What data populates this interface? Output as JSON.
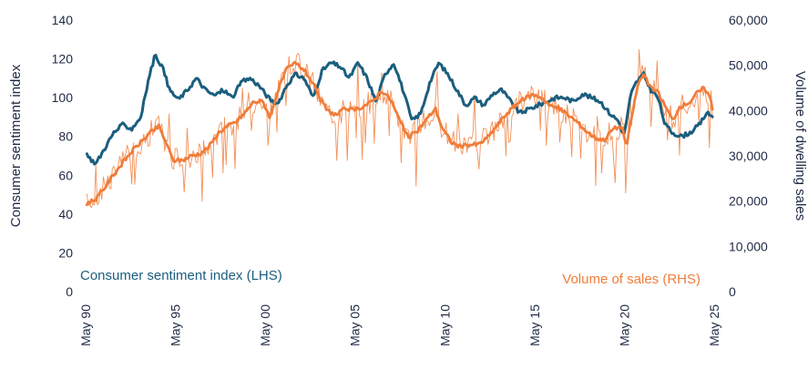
{
  "chart_data": {
    "type": "line",
    "left_axis": {
      "label": "Consumer sentiment index",
      "ticks": [
        "0",
        "20",
        "40",
        "60",
        "80",
        "100",
        "120",
        "140"
      ],
      "range": [
        0,
        140
      ]
    },
    "right_axis": {
      "label": "Volume of dwelling sales",
      "ticks": [
        "0",
        "10,000",
        "20,000",
        "30,000",
        "40,000",
        "50,000",
        "60,000"
      ],
      "range": [
        0,
        60000
      ]
    },
    "x_axis": {
      "ticks": [
        "May 90",
        "May 95",
        "May 00",
        "May 05",
        "May 10",
        "May 15",
        "May 20",
        "May 25"
      ],
      "range": [
        1990.33,
        2025.33
      ]
    },
    "series": [
      {
        "name": "Consumer sentiment index (LHS)",
        "axis": "left",
        "color": "#1b5e7e",
        "points": [
          [
            1990.4,
            70
          ],
          [
            1990.9,
            66
          ],
          [
            1991.4,
            74
          ],
          [
            1991.9,
            82
          ],
          [
            1992.4,
            86
          ],
          [
            1992.9,
            84
          ],
          [
            1993.4,
            90
          ],
          [
            1993.9,
            112
          ],
          [
            1994.2,
            122
          ],
          [
            1994.6,
            116
          ],
          [
            1995.0,
            104
          ],
          [
            1995.5,
            99
          ],
          [
            1996.0,
            104
          ],
          [
            1996.5,
            110
          ],
          [
            1997.0,
            104
          ],
          [
            1997.5,
            101
          ],
          [
            1998.0,
            104
          ],
          [
            1998.5,
            100
          ],
          [
            1999.0,
            108
          ],
          [
            1999.5,
            110
          ],
          [
            2000.0,
            106
          ],
          [
            2000.5,
            100
          ],
          [
            2001.0,
            96
          ],
          [
            2001.5,
            106
          ],
          [
            2002.0,
            112
          ],
          [
            2002.5,
            110
          ],
          [
            2003.0,
            100
          ],
          [
            2003.5,
            114
          ],
          [
            2004.0,
            118
          ],
          [
            2004.5,
            116
          ],
          [
            2005.0,
            110
          ],
          [
            2005.5,
            118
          ],
          [
            2006.0,
            110
          ],
          [
            2006.5,
            98
          ],
          [
            2007.0,
            112
          ],
          [
            2007.5,
            118
          ],
          [
            2008.0,
            104
          ],
          [
            2008.5,
            88
          ],
          [
            2009.0,
            92
          ],
          [
            2009.5,
            108
          ],
          [
            2010.0,
            118
          ],
          [
            2010.5,
            112
          ],
          [
            2011.0,
            104
          ],
          [
            2011.5,
            96
          ],
          [
            2012.0,
            100
          ],
          [
            2012.5,
            96
          ],
          [
            2013.0,
            102
          ],
          [
            2013.5,
            104
          ],
          [
            2014.0,
            98
          ],
          [
            2014.5,
            92
          ],
          [
            2015.0,
            94
          ],
          [
            2015.5,
            96
          ],
          [
            2016.0,
            98
          ],
          [
            2016.5,
            100
          ],
          [
            2017.0,
            100
          ],
          [
            2017.5,
            98
          ],
          [
            2018.0,
            102
          ],
          [
            2018.5,
            100
          ],
          [
            2019.0,
            98
          ],
          [
            2019.5,
            92
          ],
          [
            2020.0,
            88
          ],
          [
            2020.3,
            80
          ],
          [
            2020.7,
            102
          ],
          [
            2021.0,
            108
          ],
          [
            2021.4,
            112
          ],
          [
            2021.8,
            104
          ],
          [
            2022.2,
            100
          ],
          [
            2022.6,
            86
          ],
          [
            2023.0,
            82
          ],
          [
            2023.5,
            80
          ],
          [
            2024.0,
            82
          ],
          [
            2024.5,
            86
          ],
          [
            2024.9,
            92
          ],
          [
            2025.3,
            90
          ]
        ]
      },
      {
        "name": "Volume of sales (RHS)",
        "axis": "right",
        "color": "#f07d3a",
        "points": [
          [
            1990.4,
            19500
          ],
          [
            1990.9,
            20500
          ],
          [
            1991.4,
            23000
          ],
          [
            1991.9,
            26000
          ],
          [
            1992.4,
            28500
          ],
          [
            1992.9,
            31000
          ],
          [
            1993.4,
            33000
          ],
          [
            1993.9,
            35000
          ],
          [
            1994.4,
            36500
          ],
          [
            1994.8,
            33000
          ],
          [
            1995.2,
            29000
          ],
          [
            1995.7,
            29000
          ],
          [
            1996.2,
            30000
          ],
          [
            1996.7,
            30500
          ],
          [
            1997.2,
            32000
          ],
          [
            1997.7,
            35000
          ],
          [
            1998.2,
            36500
          ],
          [
            1998.7,
            37500
          ],
          [
            1999.2,
            39500
          ],
          [
            1999.7,
            42000
          ],
          [
            2000.2,
            42000
          ],
          [
            2000.6,
            38500
          ],
          [
            2001.0,
            44000
          ],
          [
            2001.5,
            49000
          ],
          [
            2002.0,
            50500
          ],
          [
            2002.5,
            49000
          ],
          [
            2003.0,
            46000
          ],
          [
            2003.3,
            43000
          ],
          [
            2003.8,
            40000
          ],
          [
            2004.3,
            39000
          ],
          [
            2004.8,
            40500
          ],
          [
            2005.3,
            40000
          ],
          [
            2005.8,
            41000
          ],
          [
            2006.3,
            42000
          ],
          [
            2006.8,
            44500
          ],
          [
            2007.3,
            42500
          ],
          [
            2007.8,
            38000
          ],
          [
            2008.3,
            34000
          ],
          [
            2008.8,
            35500
          ],
          [
            2009.3,
            38000
          ],
          [
            2009.8,
            40500
          ],
          [
            2010.2,
            36000
          ],
          [
            2010.7,
            33000
          ],
          [
            2011.2,
            32000
          ],
          [
            2011.7,
            32500
          ],
          [
            2012.2,
            32500
          ],
          [
            2012.7,
            34000
          ],
          [
            2013.2,
            36500
          ],
          [
            2013.7,
            39000
          ],
          [
            2014.2,
            41000
          ],
          [
            2014.7,
            42500
          ],
          [
            2015.2,
            43500
          ],
          [
            2015.7,
            43000
          ],
          [
            2016.2,
            41000
          ],
          [
            2016.7,
            40500
          ],
          [
            2017.2,
            39000
          ],
          [
            2017.7,
            37500
          ],
          [
            2018.2,
            35500
          ],
          [
            2018.7,
            34000
          ],
          [
            2019.2,
            33500
          ],
          [
            2019.7,
            36000
          ],
          [
            2020.2,
            36500
          ],
          [
            2020.45,
            32000
          ],
          [
            2020.8,
            40000
          ],
          [
            2021.1,
            46000
          ],
          [
            2021.4,
            48000
          ],
          [
            2021.8,
            45000
          ],
          [
            2022.2,
            44000
          ],
          [
            2022.6,
            41000
          ],
          [
            2023.0,
            38000
          ],
          [
            2023.5,
            41000
          ],
          [
            2024.0,
            42000
          ],
          [
            2024.4,
            44000
          ],
          [
            2024.8,
            45000
          ],
          [
            2025.1,
            43000
          ],
          [
            2025.3,
            39000
          ]
        ]
      }
    ]
  }
}
